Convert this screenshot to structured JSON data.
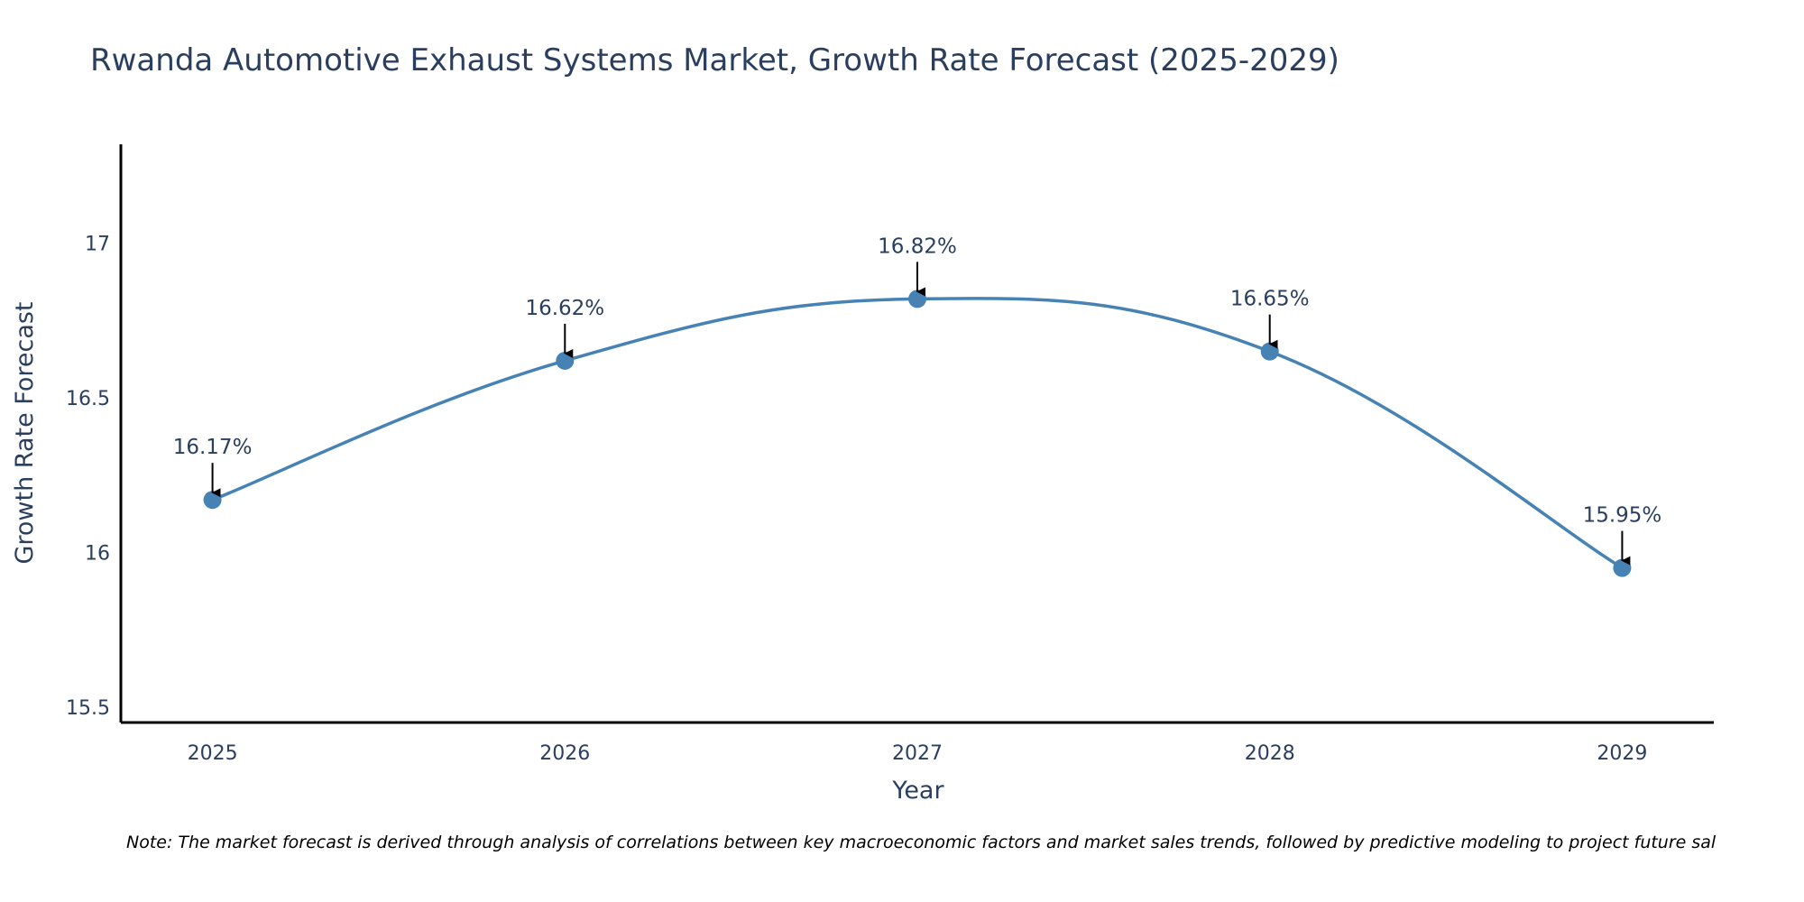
{
  "colors": {
    "line": "#4682B4",
    "text": "#2a3f5f",
    "axis": "#000000",
    "arrow": "#000000",
    "background": "#ffffff"
  },
  "chart_data": {
    "type": "line",
    "title": "Rwanda Automotive Exhaust Systems Market, Growth Rate Forecast (2025-2029)",
    "xlabel": "Year",
    "ylabel": "Growth Rate Forecast",
    "x": [
      2025,
      2026,
      2027,
      2028,
      2029
    ],
    "x_tick_labels": [
      "2025",
      "2026",
      "2027",
      "2028",
      "2029"
    ],
    "series": [
      {
        "name": "Growth Rate Forecast",
        "values": [
          16.17,
          16.62,
          16.82,
          16.65,
          15.95
        ]
      }
    ],
    "data_labels": [
      "16.17%",
      "16.62%",
      "16.82%",
      "16.65%",
      "15.95%"
    ],
    "y_ticks": [
      15.5,
      16,
      16.5,
      17
    ],
    "y_tick_labels": [
      "15.5",
      "16",
      "16.5",
      "17"
    ],
    "xlim": [
      2024.74,
      2029.26
    ],
    "ylim": [
      15.45,
      17.32
    ],
    "grid": false,
    "line_shape": "spline",
    "markers": true,
    "note": "Note: The market forecast is derived through analysis of correlations between key macroeconomic factors and market sales trends, followed by predictive modeling to project future sal"
  }
}
